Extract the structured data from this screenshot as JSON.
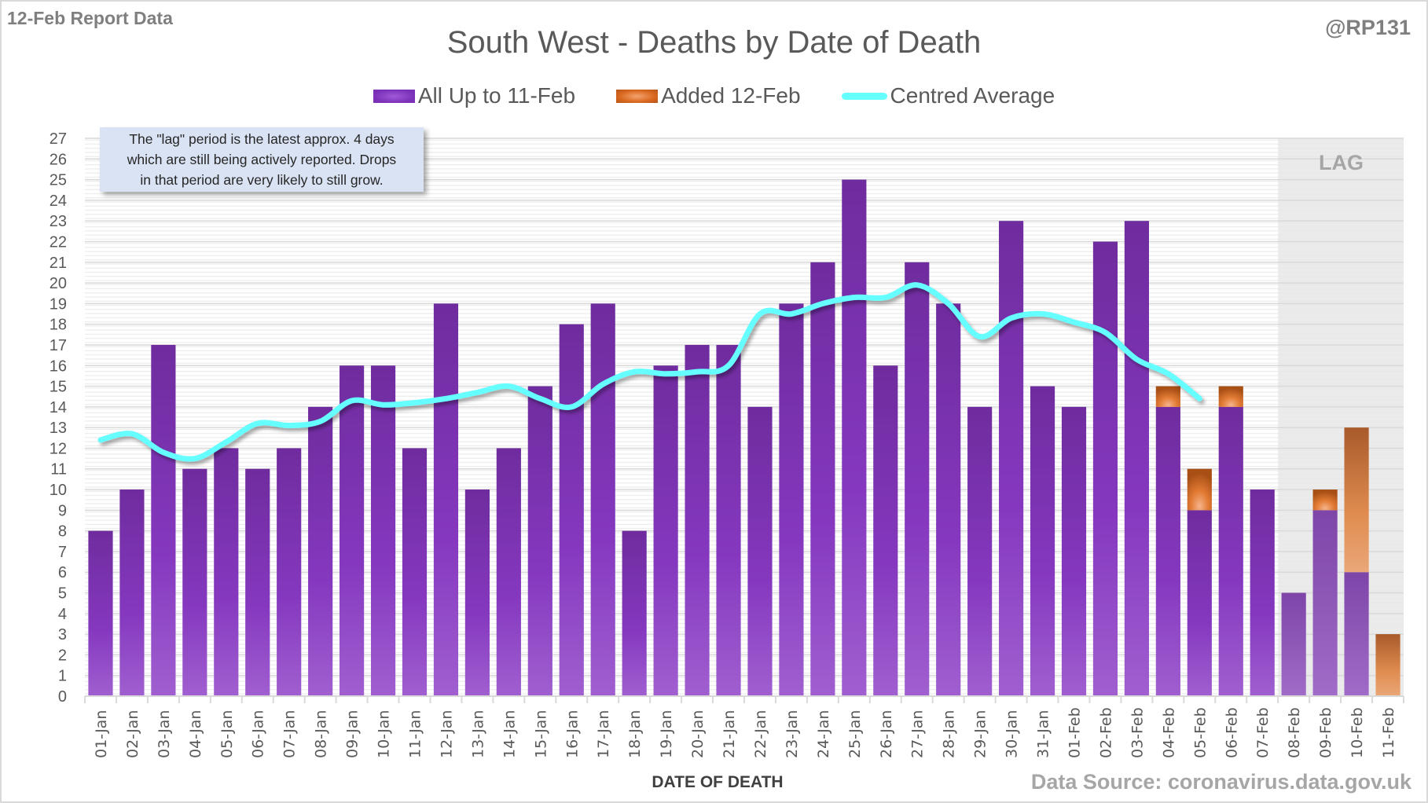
{
  "header": {
    "report_label": "12-Feb Report Data",
    "handle": "@RP131"
  },
  "note": {
    "lines": [
      "The \"lag\" period is the latest approx. 4 days",
      "which are still being actively reported.  Drops",
      "in that period are very likely to still grow."
    ]
  },
  "lag_label": "LAG",
  "footer": {
    "source": "Data Source: coronavirus.data.gov.uk"
  },
  "colors": {
    "purple": "#7b30b8",
    "orange": "#d9681f",
    "average_line": "#66ffff",
    "lag_shade": "#e8e8e8"
  },
  "chart_data": {
    "type": "bar",
    "stacked": true,
    "title": "South West - Deaths by Date of Death",
    "xlabel": "DATE OF DEATH",
    "ylabel": "",
    "ylim": [
      0,
      27
    ],
    "yticks": [
      0,
      1,
      2,
      3,
      4,
      5,
      6,
      7,
      8,
      9,
      10,
      11,
      12,
      13,
      14,
      15,
      16,
      17,
      18,
      19,
      20,
      21,
      22,
      23,
      24,
      25,
      26,
      27
    ],
    "grid": true,
    "legend_position": "top-center",
    "categories": [
      "01-Jan",
      "02-Jan",
      "03-Jan",
      "04-Jan",
      "05-Jan",
      "06-Jan",
      "07-Jan",
      "08-Jan",
      "09-Jan",
      "10-Jan",
      "11-Jan",
      "12-Jan",
      "13-Jan",
      "14-Jan",
      "15-Jan",
      "16-Jan",
      "17-Jan",
      "18-Jan",
      "19-Jan",
      "20-Jan",
      "21-Jan",
      "22-Jan",
      "23-Jan",
      "24-Jan",
      "25-Jan",
      "26-Jan",
      "27-Jan",
      "28-Jan",
      "29-Jan",
      "30-Jan",
      "31-Jan",
      "01-Feb",
      "02-Feb",
      "03-Feb",
      "04-Feb",
      "05-Feb",
      "06-Feb",
      "07-Feb",
      "08-Feb",
      "09-Feb",
      "10-Feb",
      "11-Feb"
    ],
    "series": [
      {
        "name": "All Up to 11-Feb",
        "kind": "bar",
        "values": [
          8,
          10,
          17,
          11,
          12,
          11,
          12,
          14,
          16,
          16,
          12,
          19,
          10,
          12,
          15,
          18,
          19,
          8,
          16,
          17,
          17,
          14,
          19,
          21,
          25,
          16,
          21,
          19,
          14,
          23,
          15,
          14,
          22,
          23,
          14,
          9,
          14,
          10,
          5,
          9,
          6,
          0
        ]
      },
      {
        "name": "Added 12-Feb",
        "kind": "bar",
        "values": [
          0,
          0,
          0,
          0,
          0,
          0,
          0,
          0,
          0,
          0,
          0,
          0,
          0,
          0,
          0,
          0,
          0,
          0,
          0,
          0,
          0,
          0,
          0,
          0,
          0,
          0,
          0,
          0,
          0,
          0,
          0,
          0,
          0,
          0,
          1,
          2,
          1,
          0,
          0,
          1,
          7,
          3
        ]
      },
      {
        "name": "Centred Average",
        "kind": "line",
        "values": [
          12.4,
          12.7,
          11.8,
          11.5,
          12.3,
          13.2,
          13.1,
          13.3,
          14.3,
          14.1,
          14.2,
          14.4,
          14.7,
          15.0,
          14.4,
          14.0,
          15.1,
          15.7,
          15.6,
          15.7,
          16.0,
          18.5,
          18.5,
          19.0,
          19.3,
          19.3,
          19.9,
          19.0,
          17.4,
          18.3,
          18.5,
          18.1,
          17.6,
          16.3,
          15.6,
          14.4,
          null,
          null,
          null,
          null,
          null,
          null
        ]
      }
    ],
    "lag_period": {
      "label": "LAG",
      "from": "08-Feb",
      "to": "11-Feb"
    },
    "annotations": [
      "The \"lag\" period is the latest approx. 4 days which are still being actively reported.  Drops in that period are very likely to still grow."
    ]
  }
}
